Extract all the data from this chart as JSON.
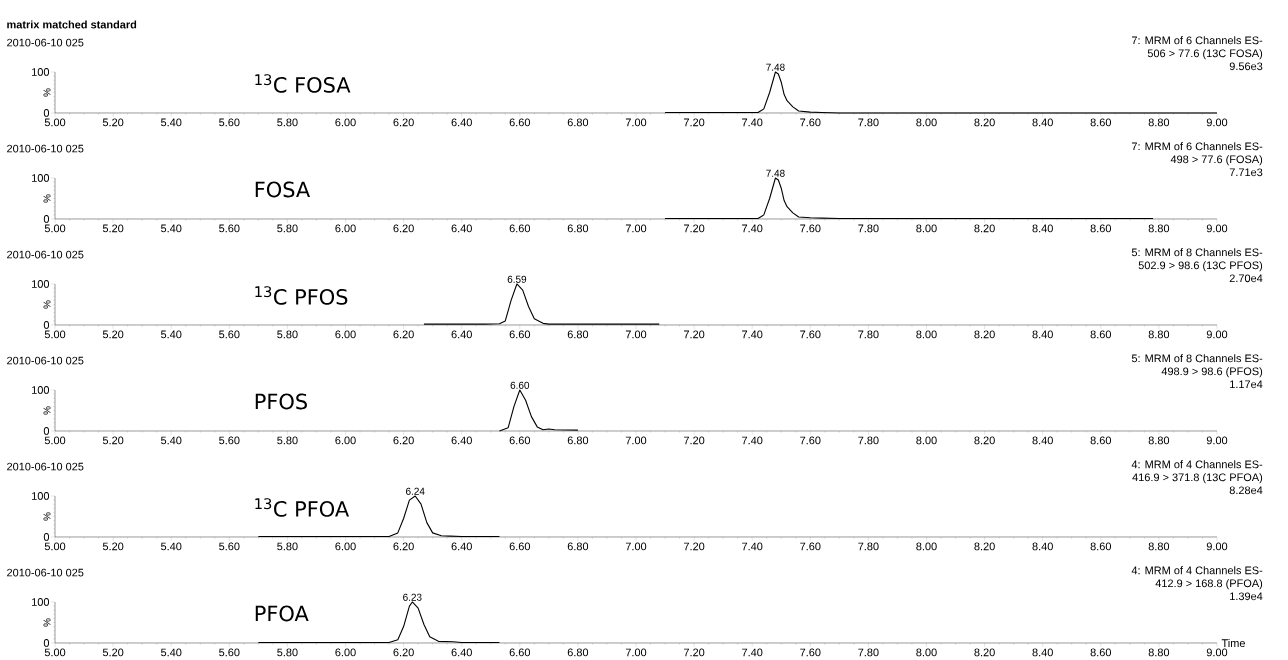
{
  "chart_data": [
    {
      "type": "line",
      "title": "matrix matched standard",
      "subtitle": "2010-06-10 025",
      "ylabel": "%",
      "annotations": [
        "$^{13}$C FOSA",
        "7: MRM of 6 Channels ES-",
        "506 > 77.6 (13C FOSA)",
        "9.56e3",
        {
          "text": "7.48",
          "x": 7.48,
          "y": 100
        }
      ],
      "x": [
        7.1,
        7.3,
        7.42,
        7.44,
        7.46,
        7.48,
        7.49,
        7.5,
        7.51,
        7.52,
        7.54,
        7.56,
        7.6,
        7.64,
        7.7,
        9.0
      ],
      "values": [
        1,
        1,
        1,
        10,
        50,
        100,
        95,
        75,
        45,
        30,
        15,
        5,
        2,
        1,
        0,
        0
      ],
      "color": "#000000",
      "xlim": [
        5,
        9
      ],
      "ylim": [
        0,
        100
      ],
      "xticks": [
        {
          "value": 5,
          "label": "5.00"
        },
        {
          "value": 5.2,
          "label": "5.20"
        },
        {
          "value": 5.4,
          "label": "5.40"
        },
        {
          "value": 5.6,
          "label": "5.60"
        },
        {
          "value": 5.8,
          "label": "5.80"
        },
        {
          "value": 6,
          "label": "6.00"
        },
        {
          "value": 6.2,
          "label": "6.20"
        },
        {
          "value": 6.4,
          "label": "6.40"
        },
        {
          "value": 6.6,
          "label": "6.60"
        },
        {
          "value": 6.8,
          "label": "6.80"
        },
        {
          "value": 7,
          "label": "7.00"
        },
        {
          "value": 7.2,
          "label": "7.20"
        },
        {
          "value": 7.4,
          "label": "7.40"
        },
        {
          "value": 7.6,
          "label": "7.60"
        },
        {
          "value": 7.8,
          "label": "7.80"
        },
        {
          "value": 8,
          "label": "8.00"
        },
        {
          "value": 8.2,
          "label": "8.20"
        },
        {
          "value": 8.4,
          "label": "8.40"
        },
        {
          "value": 8.6,
          "label": "8.60"
        },
        {
          "value": 8.8,
          "label": "8.80"
        },
        {
          "value": 9,
          "label": "9.00"
        }
      ],
      "yticks": [
        0,
        100
      ]
    },
    {
      "type": "line",
      "subtitle": "2010-06-10 025",
      "ylabel": "%",
      "annotations": [
        "FOSA",
        "7: MRM of 6 Channels ES-",
        "498 > 77.6 (FOSA)",
        "7.71e3",
        {
          "text": "7.48",
          "x": 7.48,
          "y": 100
        }
      ],
      "x": [
        7.1,
        7.3,
        7.42,
        7.44,
        7.46,
        7.48,
        7.49,
        7.5,
        7.51,
        7.52,
        7.54,
        7.56,
        7.6,
        7.64,
        7.7,
        8.78
      ],
      "values": [
        1,
        1,
        1,
        10,
        50,
        100,
        95,
        75,
        45,
        30,
        15,
        5,
        3,
        2,
        1,
        1
      ],
      "color": "#000000",
      "xlim": [
        5,
        9
      ],
      "ylim": [
        0,
        100
      ],
      "xticks": [
        {
          "value": 5,
          "label": "5.00"
        },
        {
          "value": 5.2,
          "label": "5.20"
        },
        {
          "value": 5.4,
          "label": "5.40"
        },
        {
          "value": 5.6,
          "label": "5.60"
        },
        {
          "value": 5.8,
          "label": "5.80"
        },
        {
          "value": 6,
          "label": "6.00"
        },
        {
          "value": 6.2,
          "label": "6.20"
        },
        {
          "value": 6.4,
          "label": "6.40"
        },
        {
          "value": 6.6,
          "label": "6.60"
        },
        {
          "value": 6.8,
          "label": "6.80"
        },
        {
          "value": 7,
          "label": "7.00"
        },
        {
          "value": 7.2,
          "label": "7.20"
        },
        {
          "value": 7.4,
          "label": "7.40"
        },
        {
          "value": 7.6,
          "label": "7.60"
        },
        {
          "value": 7.8,
          "label": "7.80"
        },
        {
          "value": 8,
          "label": "8.00"
        },
        {
          "value": 8.2,
          "label": "8.20"
        },
        {
          "value": 8.4,
          "label": "8.40"
        },
        {
          "value": 8.6,
          "label": "8.60"
        },
        {
          "value": 8.8,
          "label": "8.80"
        },
        {
          "value": 9,
          "label": "9.00"
        }
      ],
      "yticks": [
        0,
        100
      ]
    },
    {
      "type": "line",
      "subtitle": "2010-06-10 025",
      "ylabel": "%",
      "annotations": [
        "$^{13}$C PFOS",
        "5: MRM of 8 Channels ES-",
        "502.9 > 98.6 (13C PFOS)",
        "2.70e4",
        {
          "text": "6.59",
          "x": 6.59,
          "y": 100
        }
      ],
      "x": [
        6.27,
        6.42,
        6.48,
        6.53,
        6.55,
        6.57,
        6.59,
        6.61,
        6.63,
        6.65,
        6.68,
        6.7,
        6.9,
        7.08
      ],
      "values": [
        2,
        2,
        2,
        3,
        10,
        60,
        100,
        85,
        45,
        15,
        4,
        2,
        2,
        2
      ],
      "color": "#000000",
      "xlim": [
        5,
        9
      ],
      "ylim": [
        0,
        100
      ],
      "xticks": [
        {
          "value": 5,
          "label": "5.00"
        },
        {
          "value": 5.2,
          "label": "5.20"
        },
        {
          "value": 5.4,
          "label": "5.40"
        },
        {
          "value": 5.6,
          "label": "5.60"
        },
        {
          "value": 5.8,
          "label": "5.80"
        },
        {
          "value": 6,
          "label": "6.00"
        },
        {
          "value": 6.2,
          "label": "6.20"
        },
        {
          "value": 6.4,
          "label": "6.40"
        },
        {
          "value": 6.6,
          "label": "6.60"
        },
        {
          "value": 6.8,
          "label": "6.80"
        },
        {
          "value": 7,
          "label": "7.00"
        },
        {
          "value": 7.2,
          "label": "7.20"
        },
        {
          "value": 7.4,
          "label": "7.40"
        },
        {
          "value": 7.6,
          "label": "7.60"
        },
        {
          "value": 7.8,
          "label": "7.80"
        },
        {
          "value": 8,
          "label": "8.00"
        },
        {
          "value": 8.2,
          "label": "8.20"
        },
        {
          "value": 8.4,
          "label": "8.40"
        },
        {
          "value": 8.6,
          "label": "8.60"
        },
        {
          "value": 8.8,
          "label": "8.80"
        },
        {
          "value": 9,
          "label": "9.00"
        }
      ],
      "yticks": [
        0,
        100
      ]
    },
    {
      "type": "line",
      "subtitle": "2010-06-10 025",
      "ylabel": "%",
      "annotations": [
        "PFOS",
        "5: MRM of 8 Channels ES-",
        "498.9 > 98.6 (PFOS)",
        "1.17e4",
        {
          "text": "6.60",
          "x": 6.6,
          "y": 100
        }
      ],
      "x": [
        6.53,
        6.56,
        6.58,
        6.6,
        6.62,
        6.64,
        6.66,
        6.68,
        6.7,
        6.72,
        6.8
      ],
      "values": [
        0,
        8,
        60,
        100,
        75,
        35,
        10,
        3,
        5,
        3,
        2
      ],
      "color": "#000000",
      "xlim": [
        5,
        9
      ],
      "ylim": [
        0,
        100
      ],
      "xticks": [
        {
          "value": 5,
          "label": "5.00"
        },
        {
          "value": 5.2,
          "label": "5.20"
        },
        {
          "value": 5.4,
          "label": "5.40"
        },
        {
          "value": 5.6,
          "label": "5.60"
        },
        {
          "value": 5.8,
          "label": "5.80"
        },
        {
          "value": 6,
          "label": "6.00"
        },
        {
          "value": 6.2,
          "label": "6.20"
        },
        {
          "value": 6.4,
          "label": "6.40"
        },
        {
          "value": 6.6,
          "label": "6.60"
        },
        {
          "value": 6.8,
          "label": "6.80"
        },
        {
          "value": 7,
          "label": "7.00"
        },
        {
          "value": 7.2,
          "label": "7.20"
        },
        {
          "value": 7.4,
          "label": "7.40"
        },
        {
          "value": 7.6,
          "label": "7.60"
        },
        {
          "value": 7.8,
          "label": "7.80"
        },
        {
          "value": 8,
          "label": "8.00"
        },
        {
          "value": 8.2,
          "label": "8.20"
        },
        {
          "value": 8.4,
          "label": "8.40"
        },
        {
          "value": 8.6,
          "label": "8.60"
        },
        {
          "value": 8.8,
          "label": "8.80"
        },
        {
          "value": 9,
          "label": "9.00"
        }
      ],
      "yticks": [
        0,
        100
      ]
    },
    {
      "type": "line",
      "subtitle": "2010-06-10 025",
      "ylabel": "%",
      "annotations": [
        "$^{13}$C PFOA",
        "4: MRM of 4 Channels ES-",
        "416.9 > 371.8 (13C PFOA)",
        "8.28e4",
        {
          "text": "6.24",
          "x": 6.24,
          "y": 100
        }
      ],
      "x": [
        5.7,
        6.15,
        6.18,
        6.2,
        6.22,
        6.24,
        6.26,
        6.28,
        6.3,
        6.33,
        6.36,
        6.4,
        6.53
      ],
      "values": [
        1,
        1,
        10,
        45,
        90,
        100,
        80,
        35,
        10,
        3,
        2,
        1,
        1
      ],
      "color": "#000000",
      "xlim": [
        5,
        9
      ],
      "ylim": [
        0,
        100
      ],
      "xticks": [
        {
          "value": 5,
          "label": "5.00"
        },
        {
          "value": 5.2,
          "label": "5.20"
        },
        {
          "value": 5.4,
          "label": "5.40"
        },
        {
          "value": 5.6,
          "label": "5.60"
        },
        {
          "value": 5.8,
          "label": "5.80"
        },
        {
          "value": 6,
          "label": "6.00"
        },
        {
          "value": 6.2,
          "label": "6.20"
        },
        {
          "value": 6.4,
          "label": "6.40"
        },
        {
          "value": 6.6,
          "label": "6.60"
        },
        {
          "value": 6.8,
          "label": "6.80"
        },
        {
          "value": 7,
          "label": "7.00"
        },
        {
          "value": 7.2,
          "label": "7.20"
        },
        {
          "value": 7.4,
          "label": "7.40"
        },
        {
          "value": 7.6,
          "label": "7.60"
        },
        {
          "value": 7.8,
          "label": "7.80"
        },
        {
          "value": 8,
          "label": "8.00"
        },
        {
          "value": 8.2,
          "label": "8.20"
        },
        {
          "value": 8.4,
          "label": "8.40"
        },
        {
          "value": 8.6,
          "label": "8.60"
        },
        {
          "value": 8.8,
          "label": "8.80"
        },
        {
          "value": 9,
          "label": "9.00"
        }
      ],
      "yticks": [
        0,
        100
      ]
    },
    {
      "type": "line",
      "subtitle": "2010-06-10 025",
      "ylabel": "%",
      "xlabel": "Time",
      "annotations": [
        "PFOA",
        "4: MRM of 4 Channels ES-",
        "412.9 > 168.8 (PFOA)",
        "1.39e4",
        {
          "text": "6.23",
          "x": 6.23,
          "y": 100
        }
      ],
      "x": [
        5.7,
        6.15,
        6.18,
        6.2,
        6.22,
        6.23,
        6.25,
        6.27,
        6.29,
        6.32,
        6.37,
        6.4,
        6.53
      ],
      "values": [
        1,
        1,
        8,
        40,
        90,
        100,
        85,
        45,
        15,
        4,
        3,
        1,
        1
      ],
      "color": "#000000",
      "xlim": [
        5,
        9
      ],
      "ylim": [
        0,
        100
      ],
      "xticks": [
        {
          "value": 5,
          "label": "5.00"
        },
        {
          "value": 5.2,
          "label": "5.20"
        },
        {
          "value": 5.4,
          "label": "5.40"
        },
        {
          "value": 5.6,
          "label": "5.60"
        },
        {
          "value": 5.8,
          "label": "5.80"
        },
        {
          "value": 6,
          "label": "6.00"
        },
        {
          "value": 6.2,
          "label": "6.20"
        },
        {
          "value": 6.4,
          "label": "6.40"
        },
        {
          "value": 6.6,
          "label": "6.60"
        },
        {
          "value": 6.8,
          "label": "6.80"
        },
        {
          "value": 7,
          "label": "7.00"
        },
        {
          "value": 7.2,
          "label": "7.20"
        },
        {
          "value": 7.4,
          "label": "7.40"
        },
        {
          "value": 7.6,
          "label": "7.60"
        },
        {
          "value": 7.8,
          "label": "7.80"
        },
        {
          "value": 8,
          "label": "8.00"
        },
        {
          "value": 8.2,
          "label": "8.20"
        },
        {
          "value": 8.4,
          "label": "8.40"
        },
        {
          "value": 8.6,
          "label": "8.60"
        },
        {
          "value": 8.8,
          "label": "8.80"
        },
        {
          "value": 9,
          "label": "9.00"
        }
      ],
      "yticks": [
        0,
        100
      ]
    }
  ]
}
